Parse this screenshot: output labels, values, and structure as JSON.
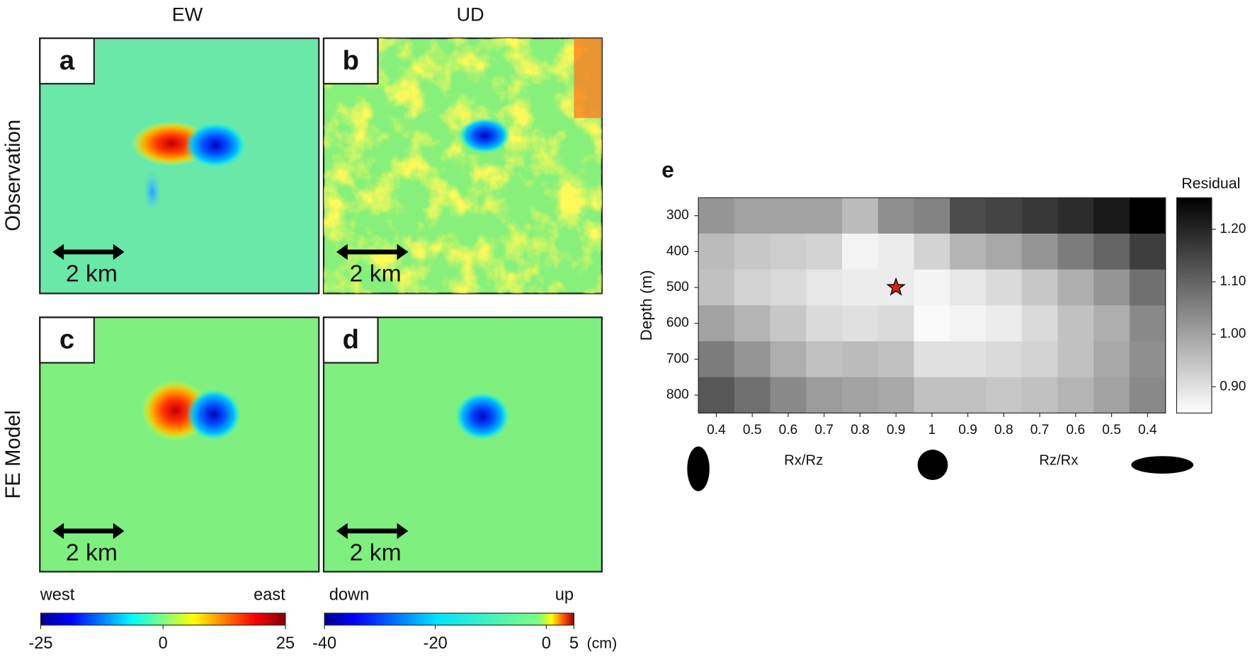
{
  "figure": {
    "column_titles": [
      "EW",
      "UD"
    ],
    "row_titles": [
      "Observation",
      "FE Model"
    ],
    "panel_letters": [
      "a",
      "b",
      "c",
      "d"
    ],
    "scale_bar_label": "2 km",
    "colorbars": [
      {
        "left_label": "west",
        "right_label": "east",
        "lim": [
          -25,
          25
        ],
        "ticks": [
          -25,
          0,
          25
        ]
      },
      {
        "left_label": "down",
        "right_label": "up",
        "lim": [
          -40,
          5
        ],
        "ticks": [
          -40,
          -20,
          0,
          5
        ],
        "unit": "(cm)"
      }
    ]
  },
  "chart_data": {
    "type": "heatmap",
    "panel_letter": "e",
    "y_label": "Depth (m)",
    "x_group_labels": [
      "Rx/Rz",
      "Rz/Rx"
    ],
    "colorbar_label": "Residual",
    "categories": [
      "0.4",
      "0.5",
      "0.6",
      "0.7",
      "0.8",
      "0.9",
      "1",
      "0.9",
      "0.8",
      "0.7",
      "0.6",
      "0.5",
      "0.4"
    ],
    "yticks": [
      300,
      400,
      500,
      600,
      700,
      800
    ],
    "values": [
      [
        1.02,
        1.0,
        1.0,
        1.0,
        0.96,
        1.03,
        1.05,
        1.14,
        1.15,
        1.17,
        1.19,
        1.22,
        1.26
      ],
      [
        0.96,
        0.94,
        0.93,
        0.92,
        0.87,
        0.88,
        0.92,
        0.97,
        0.99,
        1.02,
        1.06,
        1.1,
        1.16
      ],
      [
        0.95,
        0.92,
        0.91,
        0.89,
        0.88,
        0.88,
        0.87,
        0.89,
        0.91,
        0.94,
        0.98,
        1.02,
        1.08
      ],
      [
        1.0,
        0.97,
        0.94,
        0.91,
        0.9,
        0.91,
        0.86,
        0.87,
        0.88,
        0.91,
        0.95,
        0.98,
        1.04
      ],
      [
        1.06,
        1.02,
        0.98,
        0.95,
        0.96,
        0.95,
        0.9,
        0.9,
        0.91,
        0.92,
        0.95,
        0.99,
        1.03
      ],
      [
        1.12,
        1.08,
        1.04,
        1.01,
        1.0,
        0.99,
        0.95,
        0.95,
        0.94,
        0.95,
        0.97,
        1.0,
        1.04
      ]
    ],
    "zlim": [
      0.85,
      1.26
    ],
    "zticks": [
      {
        "value": 0.9,
        "label": "0.90"
      },
      {
        "value": 1.0,
        "label": "1.00"
      },
      {
        "value": 1.1,
        "label": "1.10"
      },
      {
        "value": 1.2,
        "label": "1.20"
      }
    ]
  }
}
